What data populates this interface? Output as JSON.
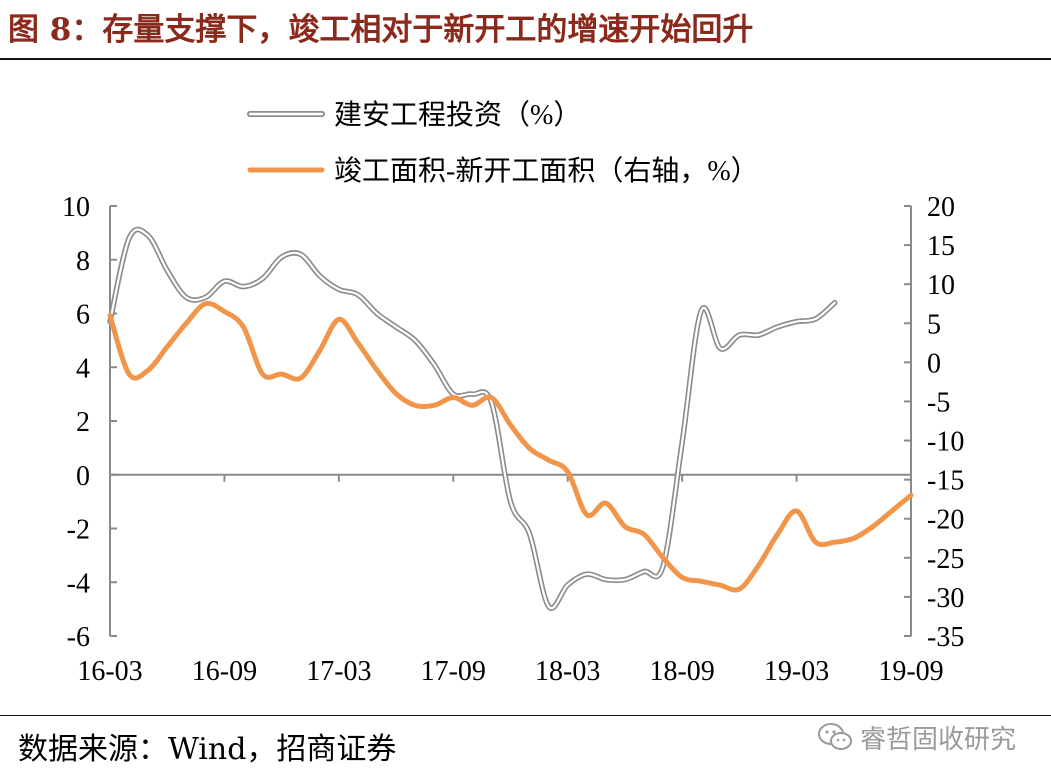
{
  "figure_title": "图 8：存量支撑下，竣工相对于新开工的增速开始回升",
  "source_text": "数据来源：Wind，招商证券",
  "watermark_text": "睿哲固收研究",
  "watermark_icon": "wechat-icon",
  "colors": {
    "title": "#8b2a1c",
    "series1": "#8c8c8c",
    "series2": "#f0954a"
  },
  "chart_data": {
    "type": "line",
    "title": "",
    "x_tick_labels": [
      "16-03",
      "16-09",
      "17-03",
      "17-09",
      "18-03",
      "18-09",
      "19-03",
      "19-09"
    ],
    "left_axis": {
      "ylim": [
        -6,
        10
      ],
      "ticks": [
        10,
        8,
        6,
        4,
        2,
        0,
        -2,
        -4,
        -6
      ]
    },
    "right_axis": {
      "ylim": [
        -35,
        20
      ],
      "ticks": [
        20,
        15,
        10,
        5,
        0,
        -5,
        -10,
        -15,
        -20,
        -25,
        -30,
        -35
      ]
    },
    "legend_position": "top-center",
    "series": [
      {
        "name": "建安工程投资（%）",
        "axis": "left",
        "style": "double-line",
        "x": [
          "2016-03",
          "2016-04",
          "2016-05",
          "2016-06",
          "2016-07",
          "2016-08",
          "2016-09",
          "2016-10",
          "2016-11",
          "2016-12",
          "2017-01",
          "2017-02",
          "2017-03",
          "2017-04",
          "2017-05",
          "2017-06",
          "2017-07",
          "2017-08",
          "2017-09",
          "2017-10",
          "2017-11",
          "2017-12",
          "2018-01",
          "2018-02",
          "2018-03",
          "2018-04",
          "2018-05",
          "2018-06",
          "2018-07",
          "2018-08",
          "2018-09",
          "2018-10",
          "2018-11",
          "2018-12",
          "2019-01",
          "2019-02",
          "2019-03",
          "2019-04",
          "2019-05",
          "2019-06",
          "2019-07",
          "2019-08",
          "2019-09"
        ],
        "values": [
          5.7,
          8.8,
          8.9,
          7.6,
          6.6,
          6.6,
          7.2,
          7.0,
          7.3,
          8.1,
          8.2,
          7.4,
          6.9,
          6.7,
          6.0,
          5.5,
          5.0,
          4.1,
          3.0,
          3.0,
          2.7,
          -1.0,
          -2.2,
          -4.9,
          -4.1,
          -3.7,
          -3.9,
          -3.9,
          -3.6,
          -3.4,
          1.2,
          6.1,
          4.7,
          5.2,
          5.2,
          5.5,
          5.7,
          5.8,
          6.4,
          null,
          null,
          null,
          null
        ]
      },
      {
        "name": "竣工面积-新开工面积（右轴，%）",
        "axis": "right",
        "style": "solid",
        "x": [
          "2016-03",
          "2016-04",
          "2016-05",
          "2016-06",
          "2016-07",
          "2016-08",
          "2016-09",
          "2016-10",
          "2016-11",
          "2016-12",
          "2017-01",
          "2017-02",
          "2017-03",
          "2017-04",
          "2017-05",
          "2017-06",
          "2017-07",
          "2017-08",
          "2017-09",
          "2017-10",
          "2017-11",
          "2017-12",
          "2018-01",
          "2018-02",
          "2018-03",
          "2018-04",
          "2018-05",
          "2018-06",
          "2018-07",
          "2018-08",
          "2018-09",
          "2018-10",
          "2018-11",
          "2018-12",
          "2019-01",
          "2019-02",
          "2019-03",
          "2019-04",
          "2019-05",
          "2019-06",
          "2019-07",
          "2019-08",
          "2019-09"
        ],
        "values": [
          6.0,
          -1.5,
          -1.0,
          2.0,
          5.0,
          7.5,
          6.5,
          4.5,
          -1.5,
          -1.5,
          -2.0,
          1.5,
          5.5,
          2.5,
          -1.0,
          -4.0,
          -5.5,
          -5.5,
          -4.5,
          -5.5,
          -4.5,
          -8.0,
          -11.0,
          -12.5,
          -14.0,
          -19.5,
          -18.0,
          -21.0,
          -22.0,
          -25.0,
          -27.5,
          -28.0,
          -28.5,
          -29.0,
          -26.0,
          -22.0,
          -19.0,
          -23.0,
          -23.0,
          -22.5,
          -21.0,
          -19.0,
          -17.0
        ]
      }
    ]
  }
}
